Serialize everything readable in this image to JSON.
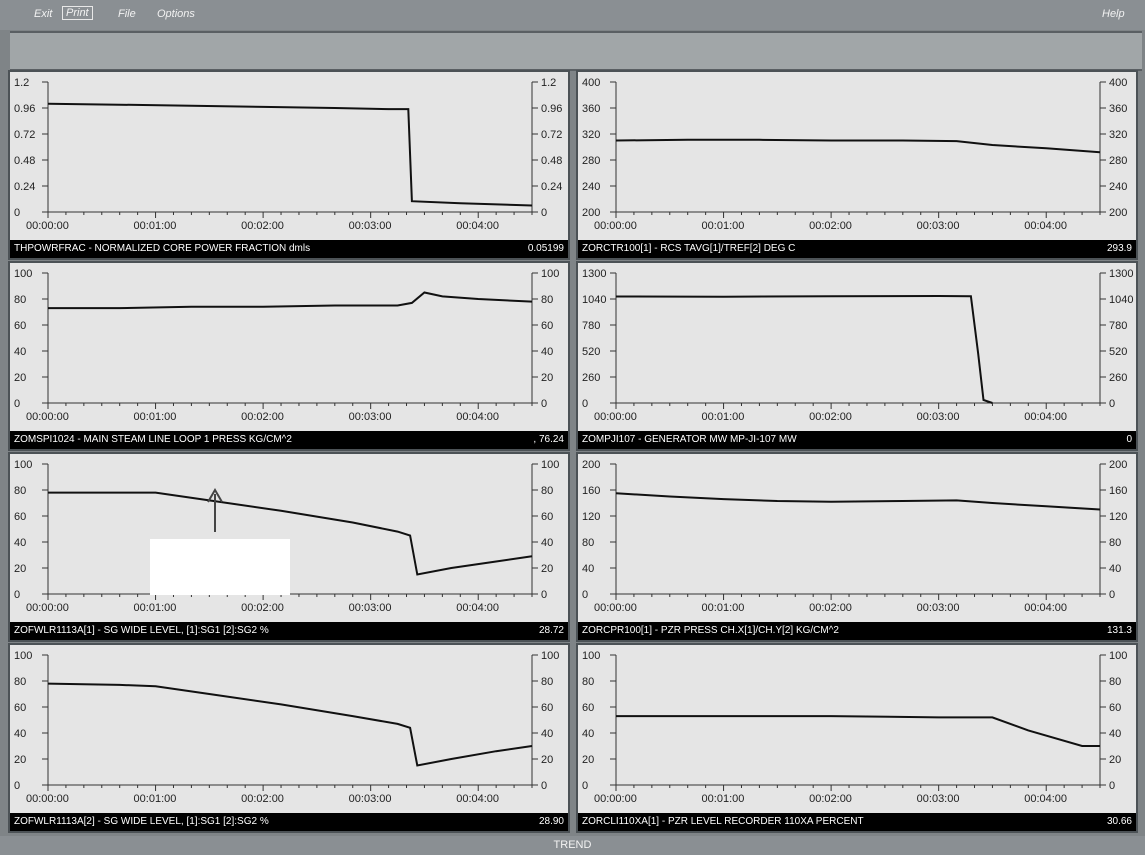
{
  "menu": {
    "exit": "Exit",
    "print": "Print",
    "file": "File",
    "options": "Options",
    "help": "Help"
  },
  "status": {
    "mode": "TREND"
  },
  "time_ticks": [
    "00:00:00",
    "00:01:00",
    "00:02:00",
    "00:03:00",
    "00:04:00"
  ],
  "colors": {
    "panel_bg": "#e5e5e5",
    "trace": "#111111",
    "label_bg": "#000000",
    "window_bg": "#7f8487"
  },
  "panels": [
    {
      "id": "p1",
      "label": "THPOWRFRAC - NORMALIZED CORE POWER FRACTION     dmls",
      "value": "0.05199",
      "yticks": [
        "1.2",
        "0.96",
        "0.72",
        "0.48",
        "0.24",
        "0"
      ],
      "ymin": 0,
      "ymax": 1.2,
      "series": [
        [
          0,
          1.0
        ],
        [
          40,
          0.99
        ],
        [
          80,
          0.98
        ],
        [
          120,
          0.97
        ],
        [
          160,
          0.96
        ],
        [
          190,
          0.95
        ],
        [
          201,
          0.95
        ],
        [
          203,
          0.1
        ],
        [
          230,
          0.08
        ],
        [
          270,
          0.06
        ]
      ]
    },
    {
      "id": "p2",
      "label": "ZORCTR100[1] - RCS TAVG[1]/TREF[2]     DEG C",
      "value": "293.9",
      "yticks": [
        "400",
        "360",
        "320",
        "280",
        "240",
        "200"
      ],
      "ymin": 200,
      "ymax": 400,
      "series": [
        [
          0,
          310
        ],
        [
          40,
          311
        ],
        [
          80,
          311
        ],
        [
          120,
          310
        ],
        [
          160,
          310
        ],
        [
          190,
          309
        ],
        [
          210,
          303
        ],
        [
          240,
          298
        ],
        [
          270,
          292
        ]
      ]
    },
    {
      "id": "p3",
      "label": "ZOMSPI1024 - MAIN STEAM LINE LOOP 1 PRESS     KG/CM^2",
      "value": ", 76.24",
      "yticks": [
        "100",
        "80",
        "60",
        "40",
        "20",
        "0"
      ],
      "ymin": 0,
      "ymax": 100,
      "series": [
        [
          0,
          73
        ],
        [
          40,
          73
        ],
        [
          80,
          74
        ],
        [
          120,
          74
        ],
        [
          160,
          75
        ],
        [
          195,
          75
        ],
        [
          203,
          77
        ],
        [
          210,
          85
        ],
        [
          220,
          82
        ],
        [
          240,
          80
        ],
        [
          270,
          78
        ]
      ]
    },
    {
      "id": "p4",
      "label": "ZOMPJI107 - GENERATOR MW MP-JI-107     MW",
      "value": "0",
      "yticks": [
        "1300",
        "1040",
        "780",
        "520",
        "260",
        "0"
      ],
      "ymin": 0,
      "ymax": 1300,
      "series": [
        [
          0,
          1065
        ],
        [
          60,
          1063
        ],
        [
          120,
          1067
        ],
        [
          180,
          1070
        ],
        [
          198,
          1068
        ],
        [
          202,
          500
        ],
        [
          205,
          30
        ],
        [
          210,
          0
        ]
      ]
    },
    {
      "id": "p5",
      "label": "ZOFWLR1113A[1] - SG WIDE LEVEL, [1]:SG1 [2]:SG2     %",
      "value": "28.72",
      "yticks": [
        "100",
        "80",
        "60",
        "40",
        "20",
        "0"
      ],
      "ymin": 0,
      "ymax": 100,
      "series": [
        [
          0,
          78
        ],
        [
          40,
          78
        ],
        [
          60,
          78
        ],
        [
          90,
          72
        ],
        [
          130,
          64
        ],
        [
          170,
          55
        ],
        [
          195,
          48
        ],
        [
          202,
          45
        ],
        [
          206,
          15
        ],
        [
          225,
          20
        ],
        [
          250,
          25
        ],
        [
          270,
          29
        ]
      ]
    },
    {
      "id": "p6",
      "label": "ZORCPR100[1] - PZR PRESS CH.X[1]/CH.Y[2]     KG/CM^2",
      "value": "131.3",
      "yticks": [
        "200",
        "160",
        "120",
        "80",
        "40",
        "0"
      ],
      "ymin": 0,
      "ymax": 200,
      "series": [
        [
          0,
          155
        ],
        [
          30,
          150
        ],
        [
          60,
          146
        ],
        [
          90,
          143
        ],
        [
          120,
          142
        ],
        [
          160,
          143
        ],
        [
          190,
          144
        ],
        [
          210,
          140
        ],
        [
          240,
          135
        ],
        [
          270,
          130
        ]
      ]
    },
    {
      "id": "p7",
      "label": "ZOFWLR1113A[2] - SG WIDE LEVEL, [1]:SG1 [2]:SG2     %",
      "value": "28.90",
      "yticks": [
        "100",
        "80",
        "60",
        "40",
        "20",
        "0"
      ],
      "ymin": 0,
      "ymax": 100,
      "series": [
        [
          0,
          78
        ],
        [
          40,
          77
        ],
        [
          60,
          76
        ],
        [
          90,
          70
        ],
        [
          130,
          62
        ],
        [
          170,
          53
        ],
        [
          195,
          47
        ],
        [
          202,
          44
        ],
        [
          206,
          15
        ],
        [
          225,
          20
        ],
        [
          250,
          26
        ],
        [
          270,
          30
        ]
      ]
    },
    {
      "id": "p8",
      "label": "ZORCLI110XA[1] - PZR LEVEL RECORDER 110XA     PERCENT",
      "value": "30.66",
      "yticks": [
        "100",
        "80",
        "60",
        "40",
        "20",
        "0"
      ],
      "ymin": 0,
      "ymax": 100,
      "series": [
        [
          0,
          53
        ],
        [
          60,
          53
        ],
        [
          120,
          53
        ],
        [
          180,
          52
        ],
        [
          210,
          52
        ],
        [
          230,
          42
        ],
        [
          260,
          30
        ],
        [
          270,
          30
        ]
      ]
    }
  ]
}
